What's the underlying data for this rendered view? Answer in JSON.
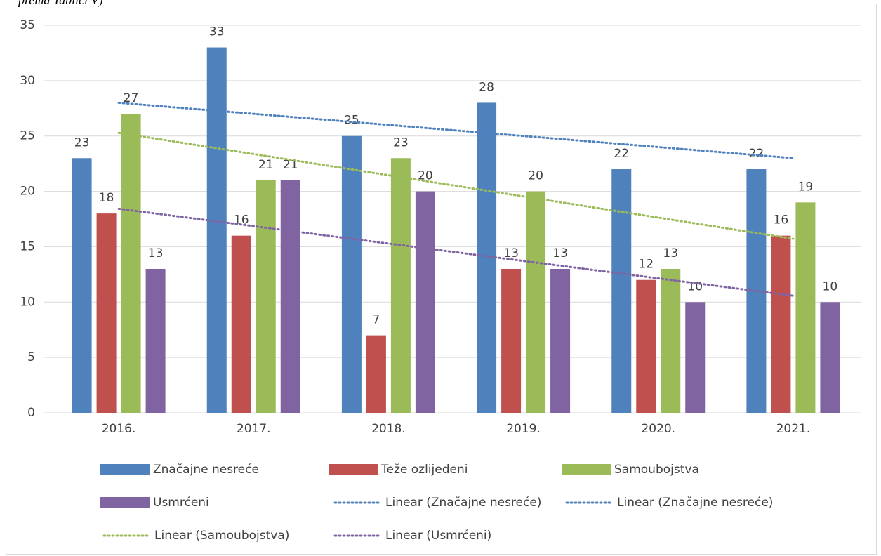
{
  "chart_data": {
    "type": "bar",
    "caption": "prema Tablici V)",
    "categories": [
      "2016.",
      "2017.",
      "2018.",
      "2019.",
      "2020.",
      "2021."
    ],
    "series": [
      {
        "name": "Značajne nesreće",
        "color": "#4f81bd",
        "values": [
          23,
          33,
          25,
          28,
          22,
          22
        ]
      },
      {
        "name": "Teže ozlijeđeni",
        "color": "#c0504d",
        "values": [
          18,
          16,
          7,
          13,
          12,
          16
        ]
      },
      {
        "name": "Samoubojstva",
        "color": "#9bbb59",
        "values": [
          27,
          21,
          23,
          20,
          13,
          19
        ]
      },
      {
        "name": "Usmrćeni",
        "color": "#8064a2",
        "values": [
          13,
          21,
          20,
          13,
          10,
          10
        ]
      }
    ],
    "trendlines": [
      {
        "name": "Linear (Značajne nesreće)",
        "series": 0,
        "color": "#4f81bd"
      },
      {
        "name": "Linear (Značajne nesreće)",
        "color": "#4f81bd"
      },
      {
        "name": "Linear (Samoubojstva)",
        "series": 2,
        "color": "#9bbb59"
      },
      {
        "name": "Linear (Usmrćeni)",
        "series": 3,
        "color": "#8064a2"
      }
    ],
    "ylim": [
      0,
      35
    ],
    "yticks": [
      0,
      5,
      10,
      15,
      20,
      25,
      30,
      35
    ],
    "grid": true
  }
}
